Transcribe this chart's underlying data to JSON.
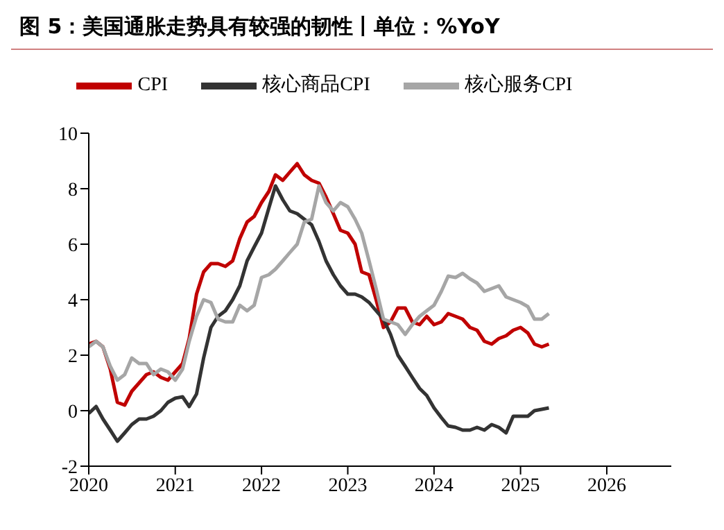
{
  "chart_data": {
    "type": "line",
    "title": "图 5：美国通胀走势具有较强的韧性丨单位：%YoY",
    "x": [
      "2020-01",
      "2020-02",
      "2020-03",
      "2020-04",
      "2020-05",
      "2020-06",
      "2020-07",
      "2020-08",
      "2020-09",
      "2020-10",
      "2020-11",
      "2020-12",
      "2021-01",
      "2021-02",
      "2021-03",
      "2021-04",
      "2021-05",
      "2021-06",
      "2021-07",
      "2021-08",
      "2021-09",
      "2021-10",
      "2021-11",
      "2021-12",
      "2022-01",
      "2022-02",
      "2022-03",
      "2022-04",
      "2022-05",
      "2022-06",
      "2022-07",
      "2022-08",
      "2022-09",
      "2022-10",
      "2022-11",
      "2022-12",
      "2023-01",
      "2023-02",
      "2023-03",
      "2023-04",
      "2023-05",
      "2023-06",
      "2023-07",
      "2023-08",
      "2023-09",
      "2023-10",
      "2023-11",
      "2023-12",
      "2024-01",
      "2024-02",
      "2024-03",
      "2024-04",
      "2024-05",
      "2024-06",
      "2024-07",
      "2024-08",
      "2024-09",
      "2024-10",
      "2024-11",
      "2024-12",
      "2025-01",
      "2025-02",
      "2025-03",
      "2025-04",
      "2025-05"
    ],
    "series": [
      {
        "name": "CPI",
        "color": "#c00000",
        "values": [
          2.4,
          2.5,
          2.3,
          1.5,
          0.3,
          0.2,
          0.7,
          1.0,
          1.3,
          1.4,
          1.2,
          1.1,
          1.4,
          1.7,
          2.6,
          4.2,
          5.0,
          5.3,
          5.3,
          5.2,
          5.4,
          6.2,
          6.8,
          7.0,
          7.5,
          7.9,
          8.5,
          8.3,
          8.6,
          8.9,
          8.5,
          8.3,
          8.2,
          7.7,
          7.1,
          6.5,
          6.4,
          6.0,
          5.0,
          4.9,
          4.0,
          3.0,
          3.2,
          3.7,
          3.7,
          3.2,
          3.1,
          3.4,
          3.1,
          3.2,
          3.5,
          3.4,
          3.3,
          3.0,
          2.9,
          2.5,
          2.4,
          2.6,
          2.7,
          2.9,
          3.0,
          2.8,
          2.4,
          2.3,
          2.4
        ]
      },
      {
        "name": "核心商品CPI",
        "color": "#333333",
        "values": [
          -0.1,
          0.15,
          -0.3,
          -0.7,
          -1.1,
          -0.8,
          -0.5,
          -0.3,
          -0.3,
          -0.2,
          0.0,
          0.3,
          0.45,
          0.5,
          0.15,
          0.6,
          1.9,
          3.0,
          3.4,
          3.6,
          4.0,
          4.5,
          5.4,
          5.9,
          6.4,
          7.3,
          8.1,
          7.6,
          7.2,
          7.1,
          6.9,
          6.7,
          6.1,
          5.4,
          4.9,
          4.5,
          4.2,
          4.2,
          4.1,
          3.9,
          3.6,
          3.3,
          2.75,
          2.0,
          1.6,
          1.2,
          0.8,
          0.55,
          0.1,
          -0.25,
          -0.55,
          -0.6,
          -0.7,
          -0.7,
          -0.6,
          -0.7,
          -0.5,
          -0.6,
          -0.8,
          -0.2,
          -0.2,
          -0.2,
          0.0,
          0.05,
          0.1
        ]
      },
      {
        "name": "核心服务CPI",
        "color": "#a6a6a6",
        "values": [
          2.3,
          2.5,
          2.3,
          1.6,
          1.1,
          1.3,
          1.9,
          1.7,
          1.7,
          1.3,
          1.5,
          1.4,
          1.1,
          1.5,
          2.5,
          3.4,
          4.0,
          3.9,
          3.3,
          3.2,
          3.2,
          3.8,
          3.6,
          3.8,
          4.8,
          4.9,
          5.1,
          5.4,
          5.7,
          6.0,
          6.8,
          6.9,
          8.1,
          7.5,
          7.2,
          7.5,
          7.35,
          6.9,
          6.4,
          5.4,
          4.4,
          3.3,
          3.2,
          3.1,
          2.75,
          3.1,
          3.4,
          3.6,
          3.8,
          4.3,
          4.85,
          4.8,
          4.95,
          4.75,
          4.6,
          4.3,
          4.4,
          4.5,
          4.1,
          4.0,
          3.9,
          3.75,
          3.3,
          3.3,
          3.5
        ]
      }
    ],
    "xlim": [
      "2020-01",
      "2026-10"
    ],
    "xticks": [
      "2020",
      "2021",
      "2022",
      "2023",
      "2024",
      "2025",
      "2026"
    ],
    "ylim": [
      -2,
      10
    ],
    "yticks": [
      -2,
      0,
      2,
      4,
      6,
      8,
      10
    ],
    "grid": false,
    "legend": "top",
    "marker": "none",
    "line_style": "solid"
  }
}
